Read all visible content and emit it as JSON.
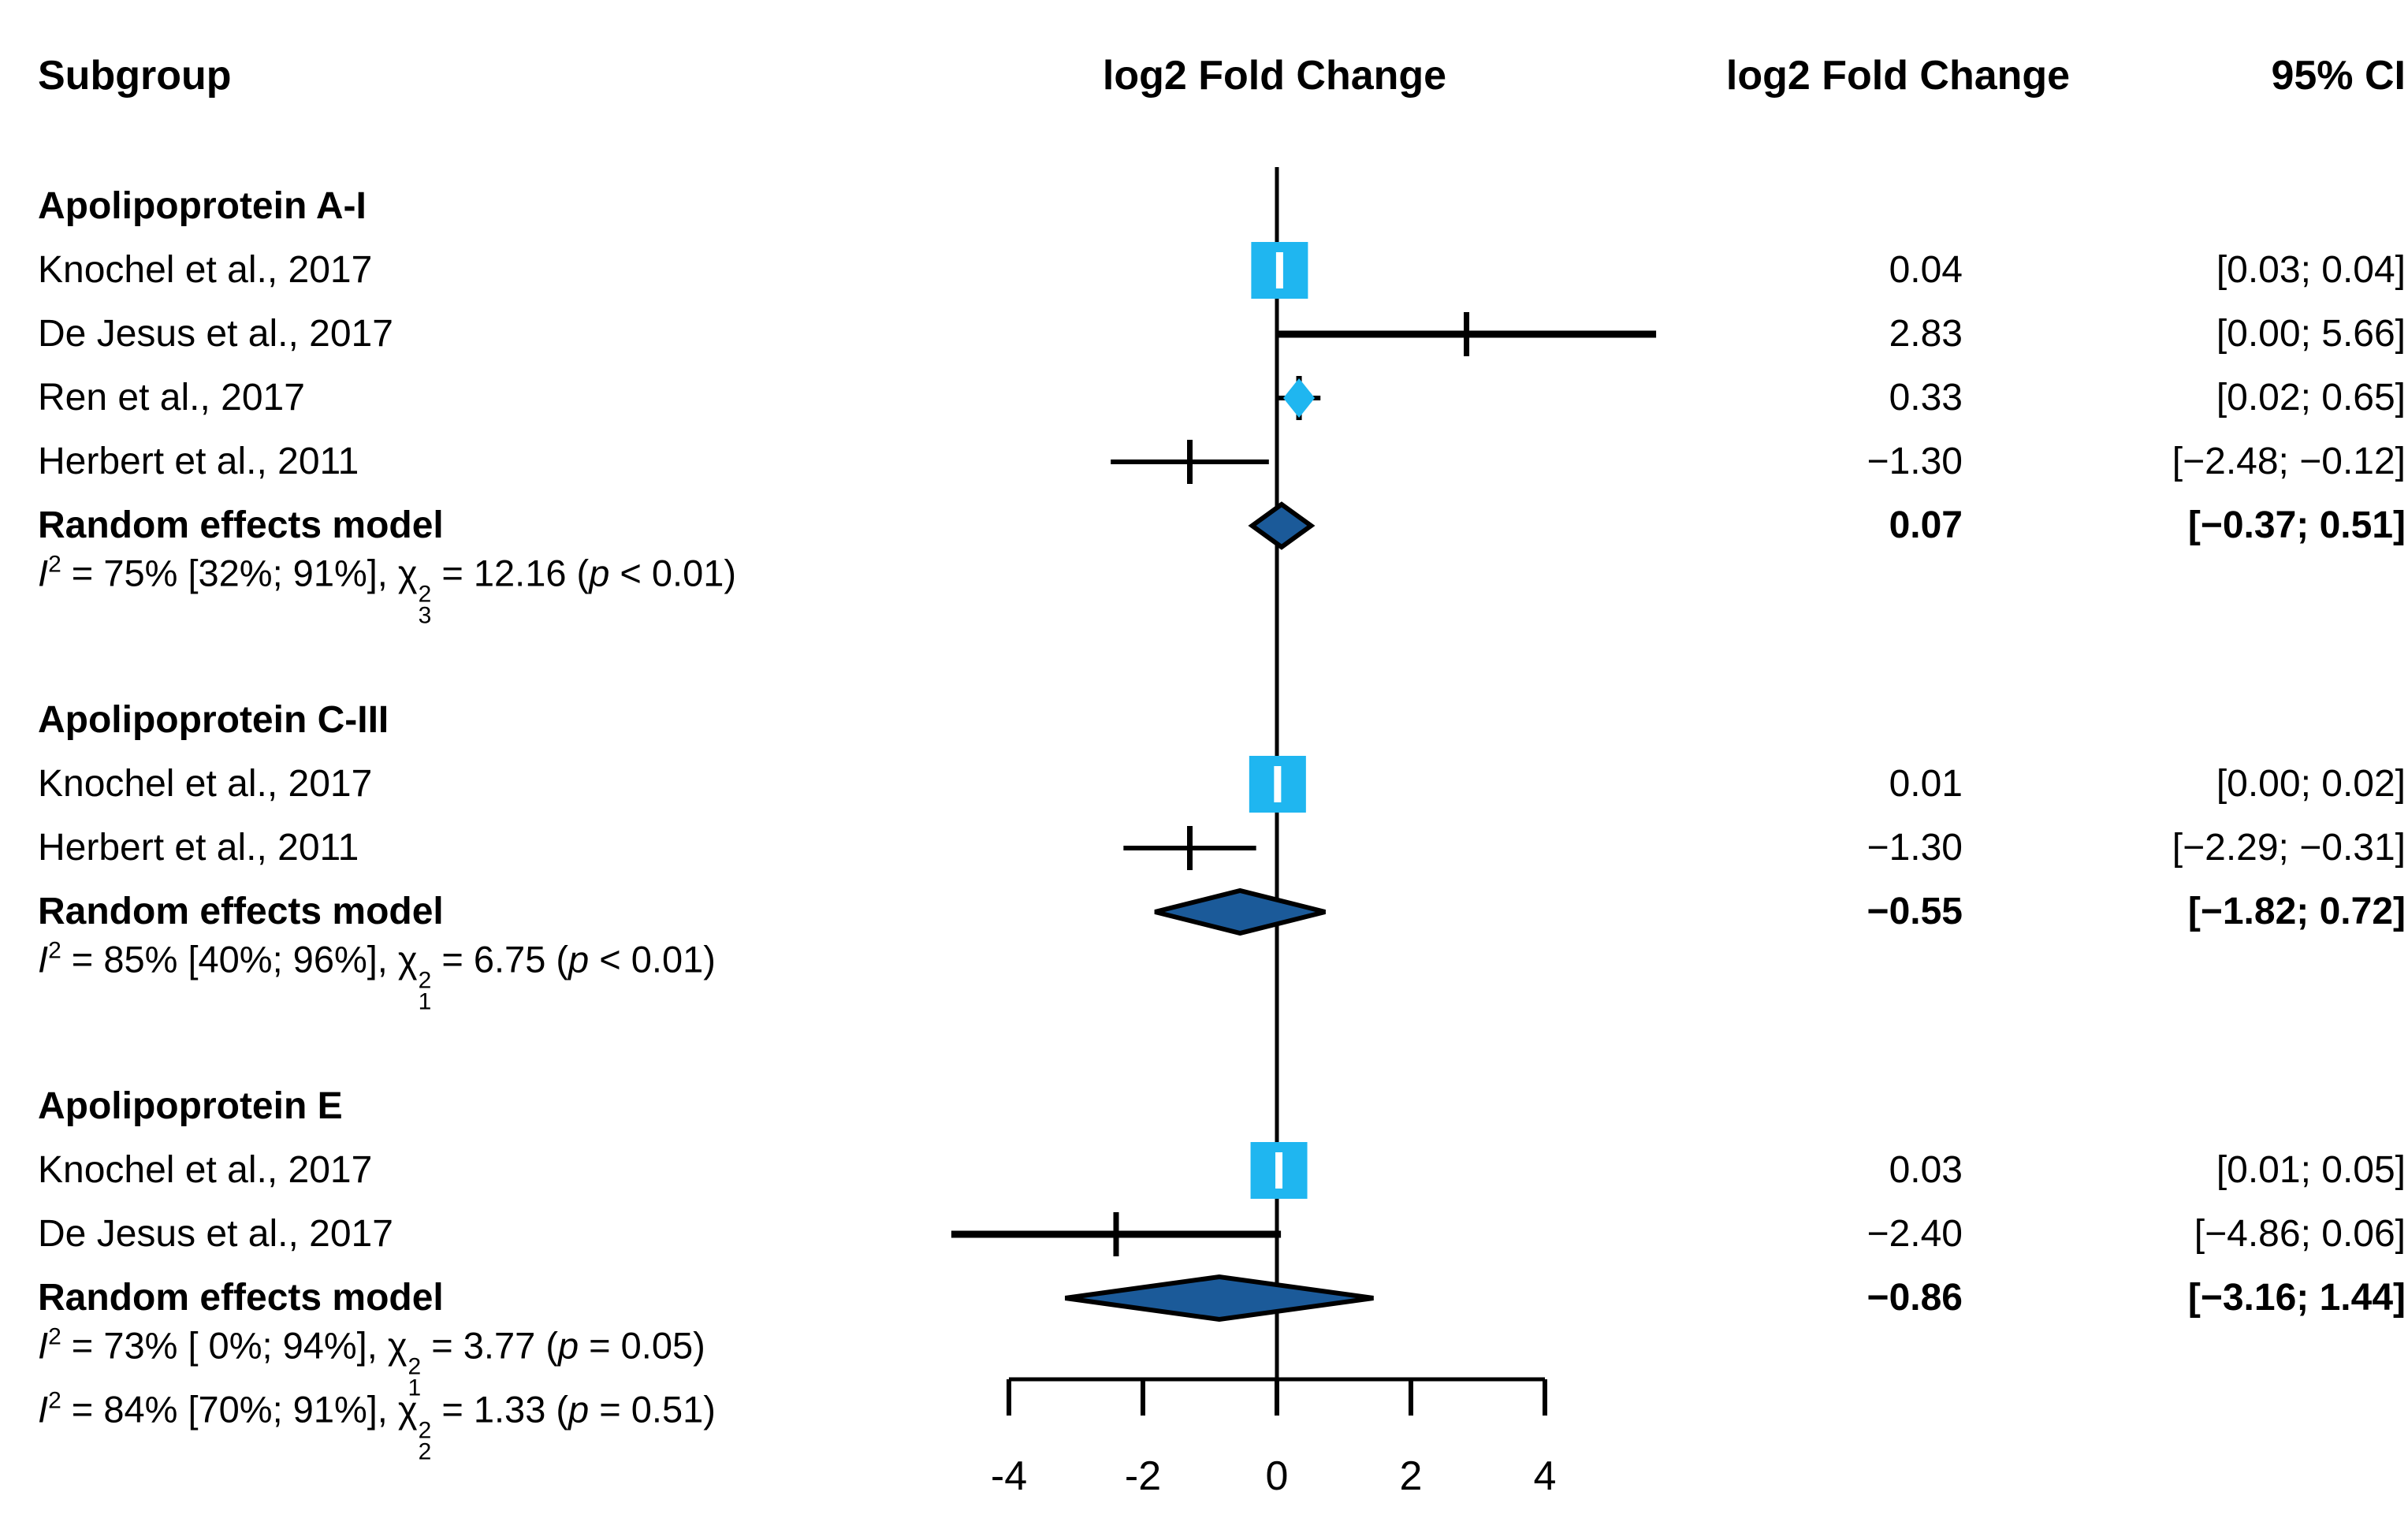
{
  "title_row": {
    "subgroup": "Subgroup",
    "plot_axis_label": "log2 Fold Change",
    "effect_col": "log2 Fold Change",
    "ci_col": "95% CI"
  },
  "colors": {
    "background": "#ffffff",
    "text": "#000000",
    "line": "#000000",
    "weight_square": "#1fb6f0",
    "square_tick": "#ffffff",
    "summary_diamond": "#1b5a99",
    "diamond_border": "#000000"
  },
  "chart_data": {
    "type": "scatter",
    "variant": "forest-plot-meta-analysis",
    "xlabel": "log2 Fold Change",
    "x_ticks": [
      "-4",
      "-2",
      "0",
      "2",
      "4"
    ],
    "x_tick_values": [
      -4,
      -2,
      0,
      2,
      4
    ],
    "xlim": [
      -4.9,
      5.7
    ],
    "grid": false,
    "groups": [
      {
        "title": "Apolipoprotein A-I",
        "studies": [
          {
            "label": "Knochel et al., 2017",
            "estimate": 0.04,
            "ci_low": 0.03,
            "ci_high": 0.04,
            "effect_text": "0.04",
            "ci_text": "[0.03; 0.04]",
            "marker": "square",
            "square_size": 72
          },
          {
            "label": "De Jesus et al., 2017",
            "estimate": 2.83,
            "ci_low": 0.0,
            "ci_high": 5.66,
            "effect_text": "2.83",
            "ci_text": "[0.00; 5.66]",
            "marker": "line",
            "thick": true
          },
          {
            "label": "Ren et al., 2017",
            "estimate": 0.33,
            "ci_low": 0.02,
            "ci_high": 0.65,
            "effect_text": "0.33",
            "ci_text": "[0.02; 0.65]",
            "marker": "small-diamond"
          },
          {
            "label": "Herbert et al., 2011",
            "estimate": -1.3,
            "ci_low": -2.48,
            "ci_high": -0.12,
            "effect_text": "−1.30",
            "ci_text": "[−2.48; −0.12]",
            "marker": "line"
          }
        ],
        "summary": {
          "label": "Random effects model",
          "estimate": 0.07,
          "ci_low": -0.37,
          "ci_high": 0.51,
          "effect_text": "0.07",
          "ci_text": "[−0.37; 0.51]"
        },
        "heterogeneity": [
          {
            "i2": "75%",
            "i2_ci": "[32%; 91%]",
            "chi_df": "3",
            "chi_value": "12.16",
            "p": "< 0.01"
          }
        ]
      },
      {
        "title": "Apolipoprotein C-III",
        "studies": [
          {
            "label": "Knochel et al., 2017",
            "estimate": 0.01,
            "ci_low": 0.0,
            "ci_high": 0.02,
            "effect_text": "0.01",
            "ci_text": "[0.00; 0.02]",
            "marker": "square",
            "square_size": 72
          },
          {
            "label": "Herbert et al., 2011",
            "estimate": -1.3,
            "ci_low": -2.29,
            "ci_high": -0.31,
            "effect_text": "−1.30",
            "ci_text": "[−2.29; −0.31]",
            "marker": "line"
          }
        ],
        "summary": {
          "label": "Random effects model",
          "estimate": -0.55,
          "ci_low": -1.82,
          "ci_high": 0.72,
          "effect_text": "−0.55",
          "ci_text": "[−1.82; 0.72]"
        },
        "heterogeneity": [
          {
            "i2": "85%",
            "i2_ci": "[40%; 96%]",
            "chi_df": "1",
            "chi_value": "6.75",
            "p": "< 0.01"
          }
        ]
      },
      {
        "title": "Apolipoprotein E",
        "studies": [
          {
            "label": "Knochel et al., 2017",
            "estimate": 0.03,
            "ci_low": 0.01,
            "ci_high": 0.05,
            "effect_text": "0.03",
            "ci_text": "[0.01; 0.05]",
            "marker": "square",
            "square_size": 72
          },
          {
            "label": "De Jesus et al., 2017",
            "estimate": -2.4,
            "ci_low": -4.86,
            "ci_high": 0.06,
            "effect_text": "−2.40",
            "ci_text": "[−4.86; 0.06]",
            "marker": "line",
            "thick": true
          }
        ],
        "summary": {
          "label": "Random effects model",
          "estimate": -0.86,
          "ci_low": -3.16,
          "ci_high": 1.44,
          "effect_text": "−0.86",
          "ci_text": "[−3.16; 1.44]"
        },
        "heterogeneity": [
          {
            "i2": "73%",
            "i2_ci": "[ 0%; 94%]",
            "chi_df": "1",
            "chi_value": "3.77",
            "p": "= 0.05"
          },
          {
            "i2": "84%",
            "i2_ci": "[70%; 91%]",
            "chi_df": "2",
            "chi_value": "1.33",
            "p": "= 0.51"
          }
        ]
      }
    ]
  }
}
